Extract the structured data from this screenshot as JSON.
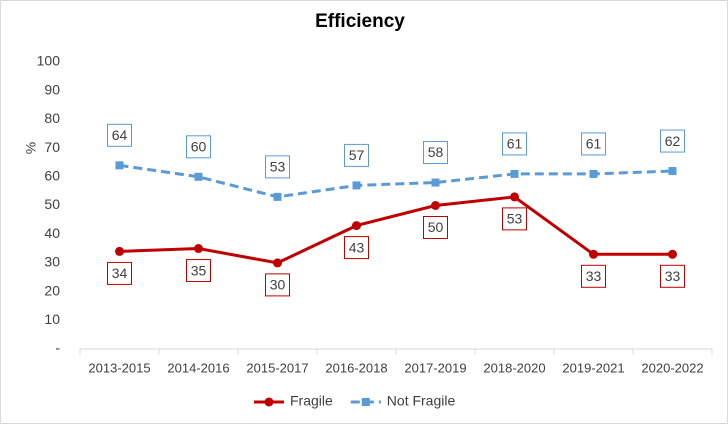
{
  "chart_data": {
    "type": "line",
    "title": "Efficiency",
    "ylabel": "%",
    "categories": [
      "2013-2015",
      "2014-2016",
      "2015-2017",
      "2016-2018",
      "2017-2019",
      "2018-2020",
      "2019-2021",
      "2020-2022"
    ],
    "series": [
      {
        "name": "Fragile",
        "color": "#c00000",
        "dashed": false,
        "marker": "circle",
        "values": [
          34,
          35,
          30,
          43,
          50,
          53,
          33,
          33
        ]
      },
      {
        "name": "Not Fragile",
        "color": "#5b9bd5",
        "dashed": true,
        "marker": "square",
        "values": [
          64,
          60,
          53,
          57,
          58,
          61,
          61,
          62
        ]
      }
    ],
    "ylim": [
      0,
      100
    ],
    "yticks": [
      {
        "value": 0,
        "label": "-"
      },
      10,
      20,
      30,
      40,
      50,
      60,
      70,
      80,
      90,
      100
    ],
    "grid": false,
    "legend": "bottom"
  }
}
